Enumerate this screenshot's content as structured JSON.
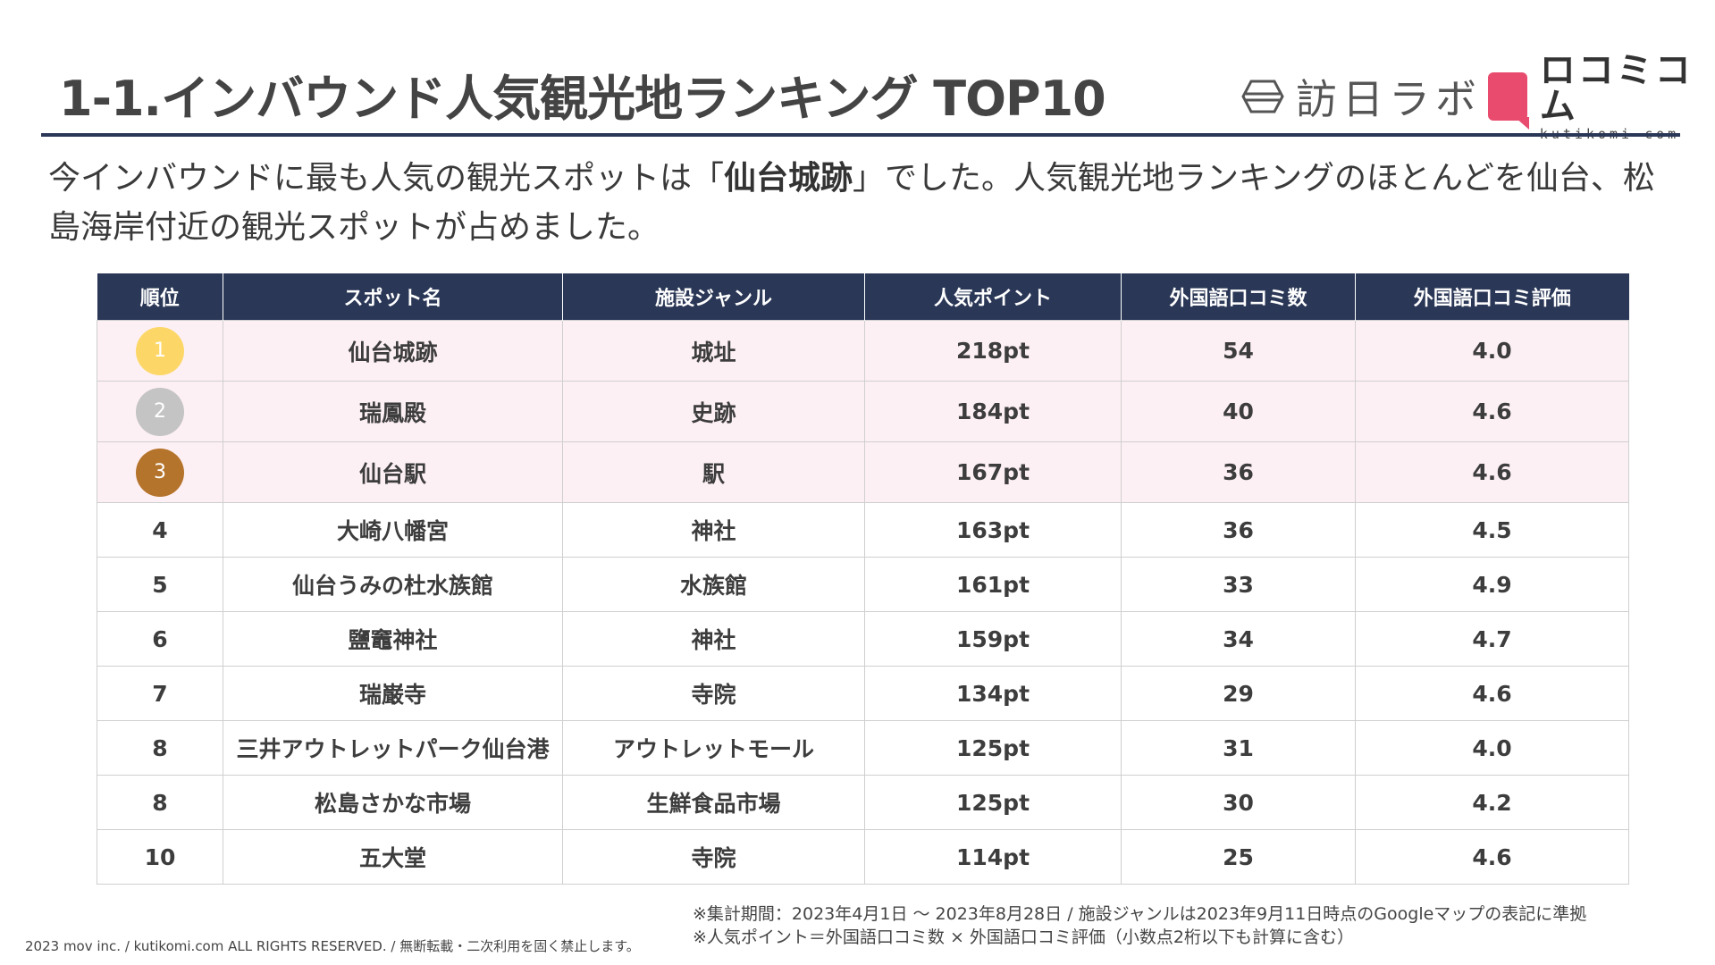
{
  "header": {
    "title": "1-1.インバウンド人気観光地ランキング TOP10",
    "logo_houjitsu": "訪日ラボ",
    "logo_kuchikomi": "ロコミコム",
    "logo_kuchikomi_sub": "kutikomi com"
  },
  "lead": {
    "part1": "今インバウンドに最も人気の観光スポットは「",
    "highlight": "仙台城跡",
    "part2": "」でした。人気観光地ランキングのほとんどを仙台、松島海岸付近の観光スポットが占めました。"
  },
  "table": {
    "headers": [
      "順位",
      "スポット名",
      "施設ジャンル",
      "人気ポイント",
      "外国語口コミ数",
      "外国語口コミ評価"
    ],
    "rows": [
      {
        "rank": "1",
        "name": "仙台城跡",
        "genre": "城址",
        "points": "218pt",
        "reviews": "54",
        "rating": "4.0"
      },
      {
        "rank": "2",
        "name": "瑞鳳殿",
        "genre": "史跡",
        "points": "184pt",
        "reviews": "40",
        "rating": "4.6"
      },
      {
        "rank": "3",
        "name": "仙台駅",
        "genre": "駅",
        "points": "167pt",
        "reviews": "36",
        "rating": "4.6"
      },
      {
        "rank": "4",
        "name": "大崎八幡宮",
        "genre": "神社",
        "points": "163pt",
        "reviews": "36",
        "rating": "4.5"
      },
      {
        "rank": "5",
        "name": "仙台うみの杜水族館",
        "genre": "水族館",
        "points": "161pt",
        "reviews": "33",
        "rating": "4.9"
      },
      {
        "rank": "6",
        "name": "鹽竈神社",
        "genre": "神社",
        "points": "159pt",
        "reviews": "34",
        "rating": "4.7"
      },
      {
        "rank": "7",
        "name": "瑞巌寺",
        "genre": "寺院",
        "points": "134pt",
        "reviews": "29",
        "rating": "4.6"
      },
      {
        "rank": "8",
        "name": "三井アウトレットパーク仙台港",
        "genre": "アウトレットモール",
        "points": "125pt",
        "reviews": "31",
        "rating": "4.0"
      },
      {
        "rank": "8",
        "name": "松島さかな市場",
        "genre": "生鮮食品市場",
        "points": "125pt",
        "reviews": "30",
        "rating": "4.2"
      },
      {
        "rank": "10",
        "name": "五大堂",
        "genre": "寺院",
        "points": "114pt",
        "reviews": "25",
        "rating": "4.6"
      }
    ]
  },
  "notes": [
    "※集計期間：2023年4月1日 〜 2023年8月28日 / 施設ジャンルは2023年9月11日時点のGoogleマップの表記に準拠",
    "※人気ポイント＝外国語口コミ数 × 外国語口コミ評価（小数点2桁以下も計算に含む）"
  ],
  "copyright": "2023 mov inc. / kutikomi.com ALL RIGHTS RESERVED. / 無断転載・二次利用を固く禁止します。",
  "colors": {
    "header_navy": "#2a3756",
    "top3_row_bg": "#fdf0f4",
    "gold": "#fcd768",
    "silver": "#c4c4c4",
    "bronze": "#b5742c",
    "brand_pink": "#e94b6e"
  }
}
